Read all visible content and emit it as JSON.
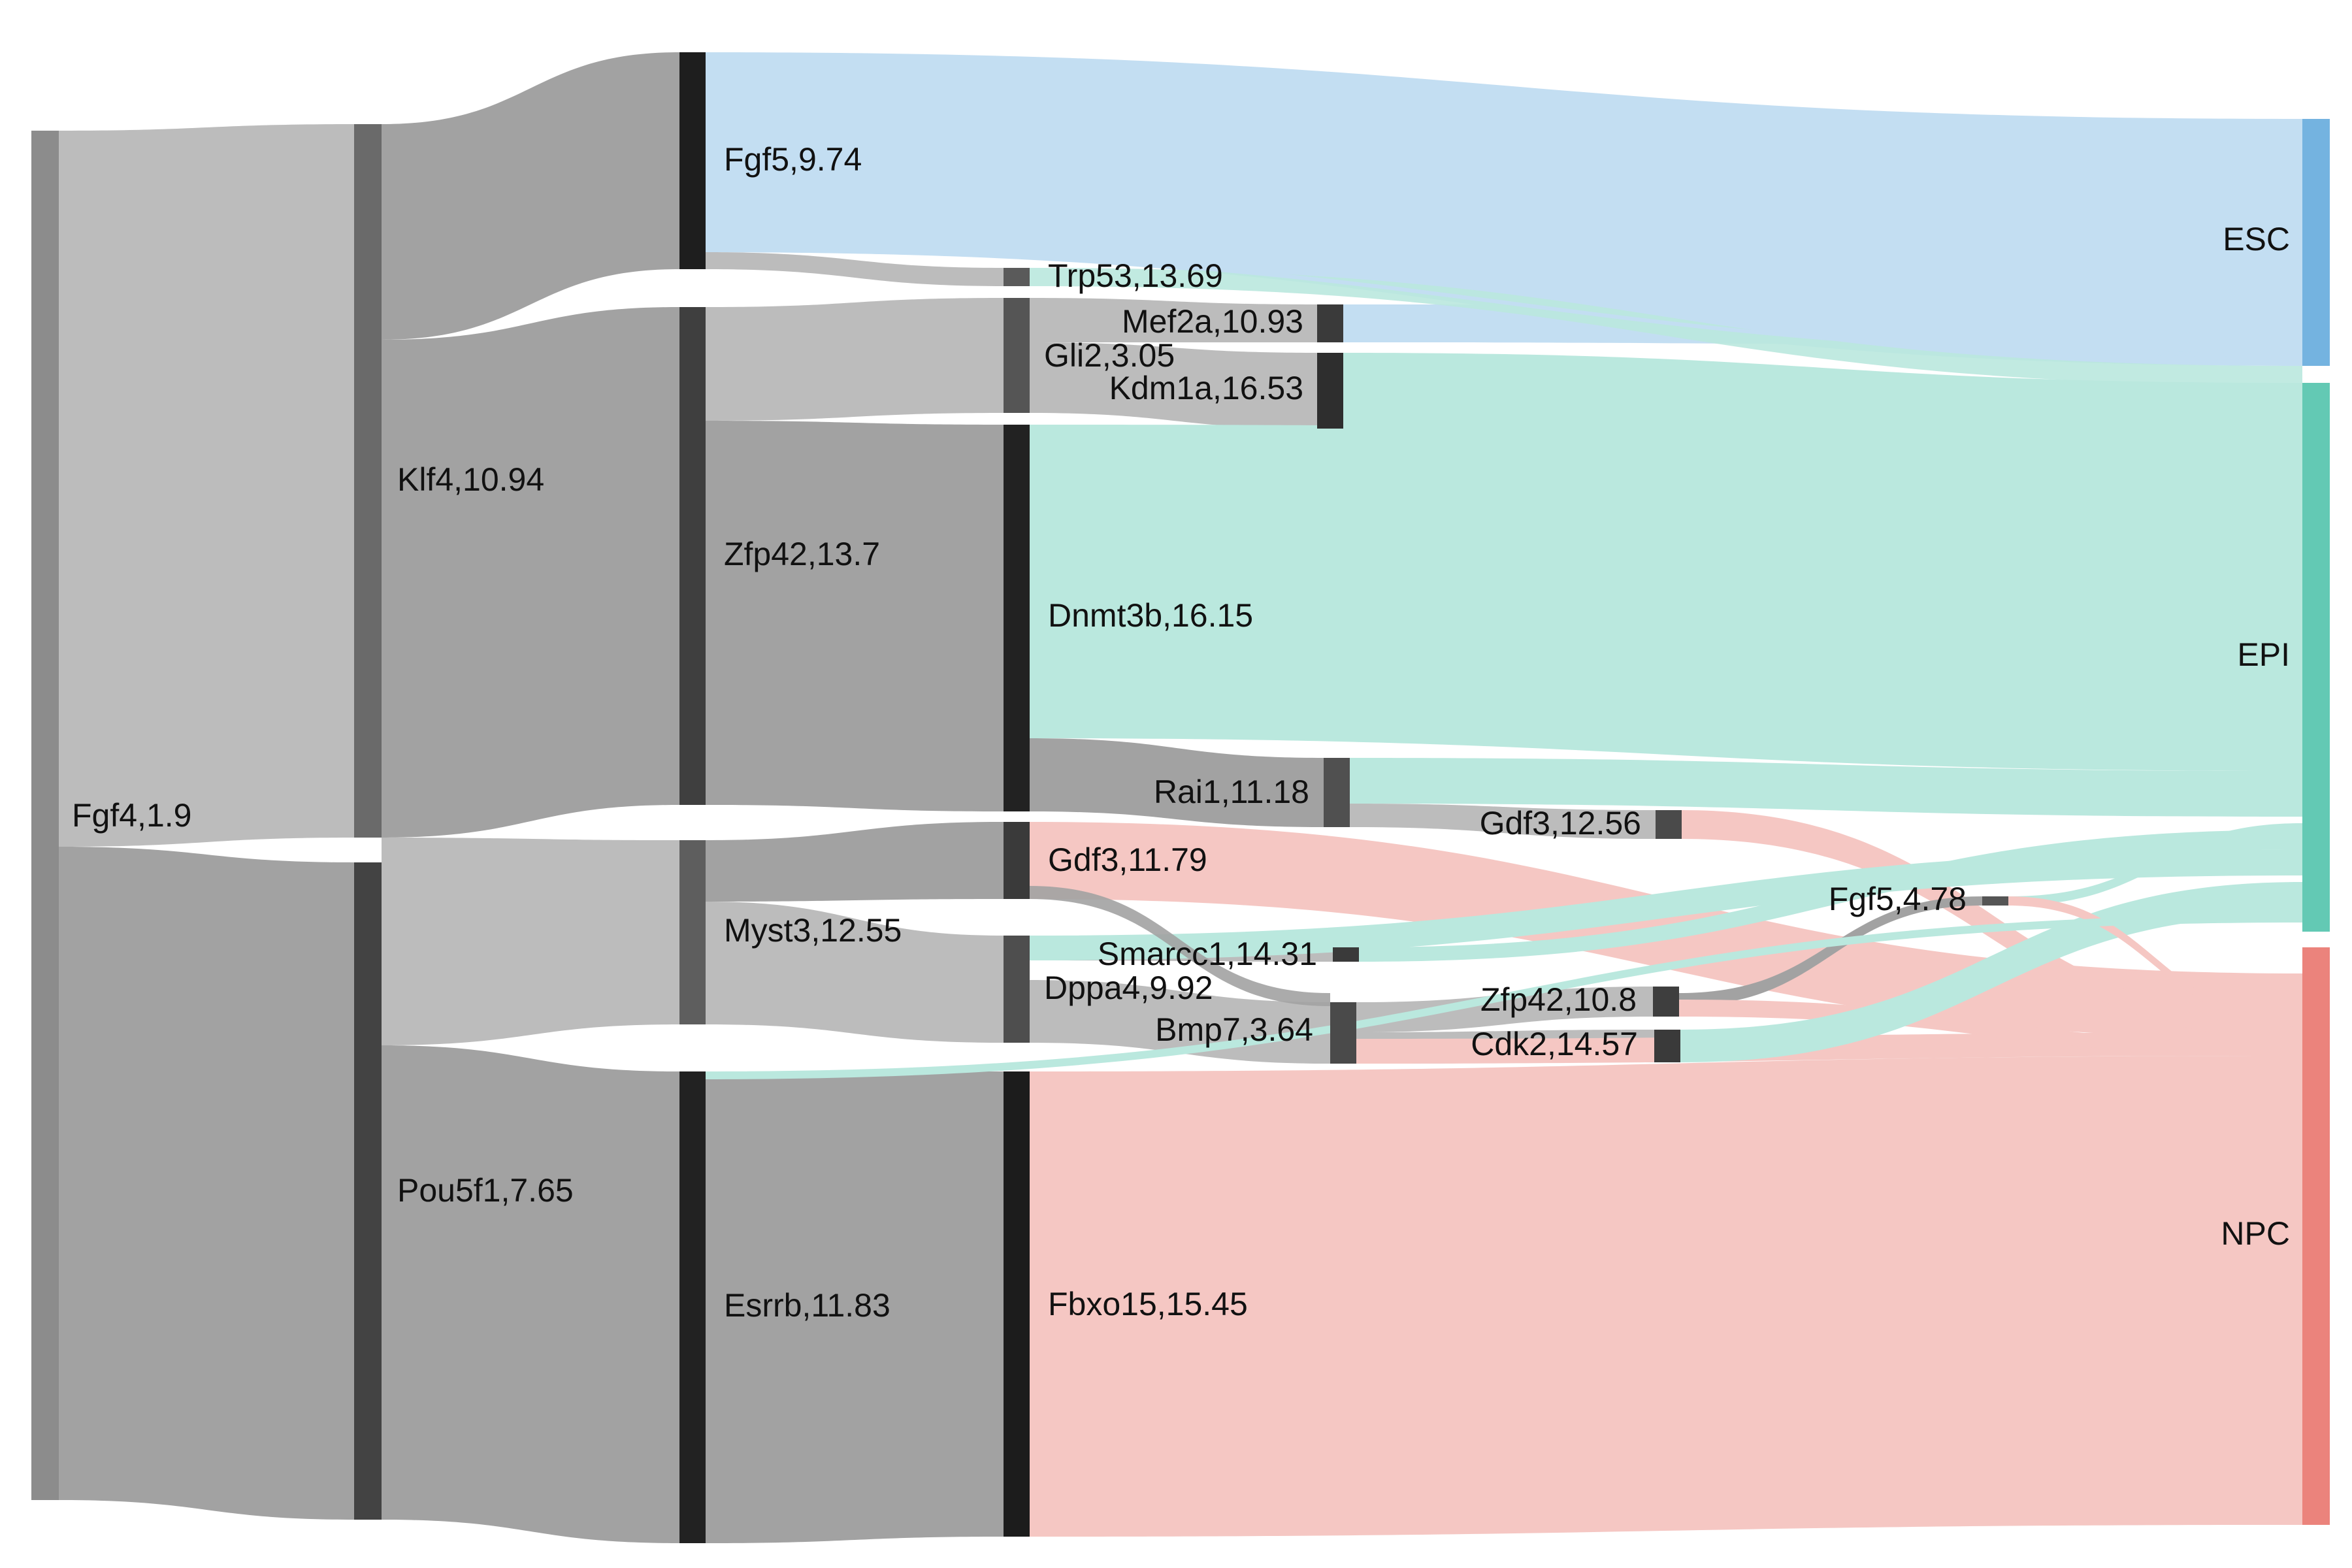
{
  "diagram": {
    "type": "sankey",
    "node_labels": {
      "fgf4": "Fgf4,1.9",
      "klf4": "Klf4,10.94",
      "pou5f1": "Pou5f1,7.65",
      "fgf5a": "Fgf5,9.74",
      "zfp42a": "Zfp42,13.7",
      "myst3": "Myst3,12.55",
      "esrrb": "Esrrb,11.83",
      "trp53": "Trp53,13.69",
      "gli2": "Gli2,3.05",
      "dnmt3b": "Dnmt3b,16.15",
      "gdf3a": "Gdf3,11.79",
      "dppa4": "Dppa4,9.92",
      "fbxo15": "Fbxo15,15.45",
      "mef2a": "Mef2a,10.93",
      "kdm1a": "Kdm1a,16.53",
      "rai1": "Rai1,11.18",
      "smarcc1": "Smarcc1,14.31",
      "bmp7": "Bmp7,3.64",
      "gdf3b": "Gdf3,12.56",
      "zfp42b": "Zfp42,10.8",
      "cdk2": "Cdk2,14.57",
      "fgf5b": "Fgf5,4.78",
      "esc": "ESC",
      "epi": "EPI",
      "npc": "NPC"
    },
    "colors": {
      "esc": "#74b3e0",
      "epi": "#63c9b4",
      "npc": "#eb837c",
      "esc_link": "#c3def2",
      "epi_link": "#bae8de",
      "npc_link": "#f5c7c3",
      "gene_link_light": "#bcbcbc",
      "gene_link_dark": "#a2a2a2"
    }
  }
}
